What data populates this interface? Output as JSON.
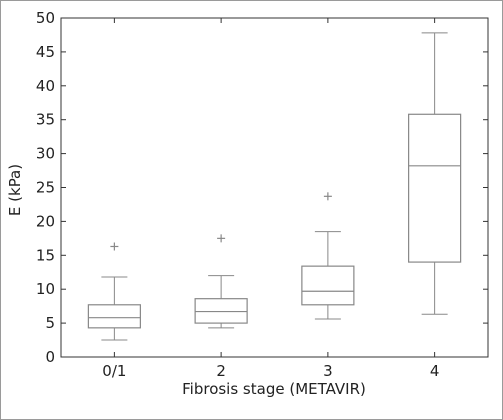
{
  "chart_data": {
    "type": "box",
    "title": "",
    "xlabel": "Fibrosis stage (METAVIR)",
    "ylabel": "E (kPa)",
    "ylim": [
      0,
      50
    ],
    "yticks": [
      0,
      5,
      10,
      15,
      20,
      25,
      30,
      35,
      40,
      45,
      50
    ],
    "categories": [
      "0/1",
      "2",
      "3",
      "4"
    ],
    "boxes": [
      {
        "category": "0/1",
        "whisker_low": 2.5,
        "q1": 4.3,
        "median": 5.8,
        "q3": 7.7,
        "whisker_high": 11.8,
        "outliers": [
          16.3
        ]
      },
      {
        "category": "2",
        "whisker_low": 4.3,
        "q1": 5.0,
        "median": 6.7,
        "q3": 8.6,
        "whisker_high": 12.0,
        "outliers": [
          17.5
        ]
      },
      {
        "category": "3",
        "whisker_low": 5.6,
        "q1": 7.7,
        "median": 9.7,
        "q3": 13.4,
        "whisker_high": 18.5,
        "outliers": [
          23.7
        ]
      },
      {
        "category": "4",
        "whisker_low": 6.3,
        "q1": 14.0,
        "median": 28.2,
        "q3": 35.8,
        "whisker_high": 47.8,
        "outliers": []
      }
    ],
    "grid": false,
    "colors": {
      "box": "#888888",
      "axis": "#333333",
      "outlier": "#888888"
    }
  }
}
